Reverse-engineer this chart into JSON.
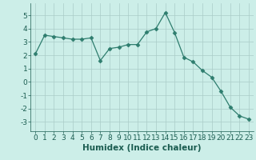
{
  "x": [
    0,
    1,
    2,
    3,
    4,
    5,
    6,
    7,
    8,
    9,
    10,
    11,
    12,
    13,
    14,
    15,
    16,
    17,
    18,
    19,
    20,
    21,
    22,
    23
  ],
  "y": [
    2.1,
    3.5,
    3.4,
    3.3,
    3.2,
    3.2,
    3.3,
    1.6,
    2.5,
    2.6,
    2.8,
    2.8,
    3.75,
    4.0,
    5.2,
    3.7,
    1.85,
    1.5,
    0.85,
    0.35,
    -0.7,
    -1.9,
    -2.55,
    -2.8
  ],
  "xlabel": "Humidex (Indice chaleur)",
  "xlim": [
    -0.5,
    23.5
  ],
  "ylim": [
    -3.7,
    5.9
  ],
  "yticks": [
    -3,
    -2,
    -1,
    0,
    1,
    2,
    3,
    4,
    5
  ],
  "xticks": [
    0,
    1,
    2,
    3,
    4,
    5,
    6,
    7,
    8,
    9,
    10,
    11,
    12,
    13,
    14,
    15,
    16,
    17,
    18,
    19,
    20,
    21,
    22,
    23
  ],
  "line_color": "#2e7d6e",
  "marker": "D",
  "marker_size": 2.5,
  "bg_color": "#cceee8",
  "grid_color": "#aaccc8",
  "tick_label_fontsize": 6.5,
  "xlabel_fontsize": 7.5
}
